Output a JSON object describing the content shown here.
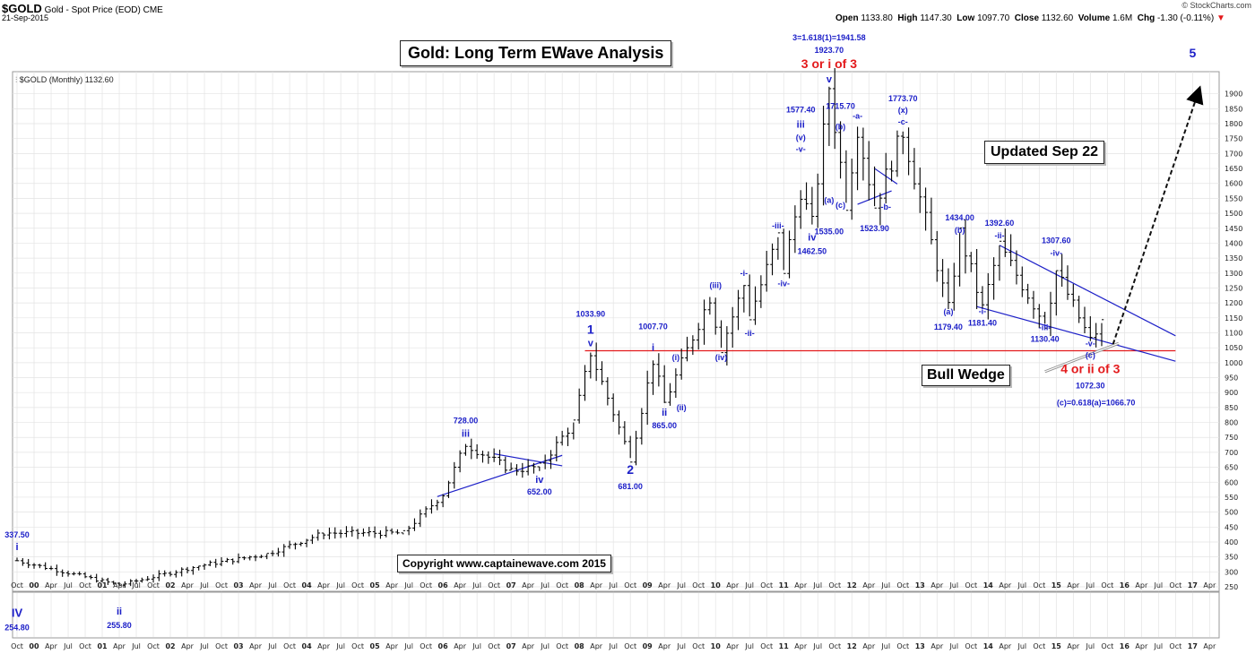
{
  "header": {
    "symbol": "$GOLD",
    "description": "Gold - Spot Price (EOD)",
    "exchange": "CME",
    "date": "21-Sep-2015",
    "open_label": "Open",
    "open": "1133.80",
    "high_label": "High",
    "high": "1147.30",
    "low_label": "Low",
    "low": "1097.70",
    "close_label": "Close",
    "close": "1132.60",
    "volume_label": "Volume",
    "volume": "1.6M",
    "chg_label": "Chg",
    "chg": "-1.30 (-0.11%)",
    "chg_marker": "▼",
    "source": "© StockCharts.com",
    "legend": "$GOLD (Monthly) 1132.60"
  },
  "title_box": "Gold: Long Term EWave Analysis",
  "updated_box": "Updated Sep 22",
  "bull_wedge": "Bull Wedge",
  "copyright": "Copyright   www.captainewave.com 2015",
  "colors": {
    "blue": "#1d20c8",
    "red": "#e31a1c",
    "bars": "#000000",
    "grid": "#e3e3e3"
  },
  "chart_data": {
    "type": "ohlc-bar",
    "title": "Gold: Long Term EWave Analysis",
    "series_name": "$GOLD (Monthly)",
    "ylim": [
      250,
      1950
    ],
    "y_ticks": [
      250,
      300,
      350,
      400,
      450,
      500,
      550,
      600,
      650,
      700,
      750,
      800,
      850,
      900,
      950,
      1000,
      1050,
      1100,
      1150,
      1200,
      1250,
      1300,
      1350,
      1400,
      1450,
      1500,
      1550,
      1600,
      1650,
      1700,
      1750,
      1800,
      1850,
      1900
    ],
    "x_ticks": [
      "Oct",
      "00",
      "Apr",
      "Jul",
      "Oct",
      "01",
      "Apr",
      "Jul",
      "Oct",
      "02",
      "Apr",
      "Jul",
      "Oct",
      "03",
      "Apr",
      "Jul",
      "Oct",
      "04",
      "Apr",
      "Jul",
      "Oct",
      "05",
      "Apr",
      "Jul",
      "Oct",
      "06",
      "Apr",
      "Jul",
      "Oct",
      "07",
      "Apr",
      "Jul",
      "Oct",
      "08",
      "Apr",
      "Jul",
      "Oct",
      "09",
      "Apr",
      "Jul",
      "Oct",
      "10",
      "Apr",
      "Jul",
      "Oct",
      "11",
      "Apr",
      "Jul",
      "Oct",
      "12",
      "Apr",
      "Jul",
      "Oct",
      "13",
      "Apr",
      "Jul",
      "Oct",
      "14",
      "Apr",
      "Jul",
      "Oct",
      "15",
      "Apr",
      "Jul",
      "Oct",
      "16",
      "Apr",
      "Jul",
      "Oct",
      "17",
      "Apr"
    ],
    "start_month": "1999-10",
    "end_month": "2017-04",
    "anchors": [
      [
        "1999-10",
        337.5
      ],
      [
        "2001-04",
        255.8
      ],
      [
        "2002-06",
        320
      ],
      [
        "2003-06",
        360
      ],
      [
        "2004-04",
        430
      ],
      [
        "2005-06",
        430
      ],
      [
        "2006-01",
        560
      ],
      [
        "2006-05",
        728.0
      ],
      [
        "2007-01",
        640
      ],
      [
        "2007-06",
        652.0
      ],
      [
        "2007-12",
        800
      ],
      [
        "2008-03",
        1033.9
      ],
      [
        "2008-10",
        681.0
      ],
      [
        "2009-02",
        1007.7
      ],
      [
        "2009-04",
        865.0
      ],
      [
        "2009-12",
        1220
      ],
      [
        "2010-02",
        1050
      ],
      [
        "2010-06",
        1260
      ],
      [
        "2010-07",
        1155
      ],
      [
        "2010-12",
        1420
      ],
      [
        "2011-01",
        1310
      ],
      [
        "2011-04",
        1577.4
      ],
      [
        "2011-06",
        1462.5
      ],
      [
        "2011-09",
        1923.7
      ],
      [
        "2011-12",
        1535.0
      ],
      [
        "2012-02",
        1790
      ],
      [
        "2012-05",
        1523.9
      ],
      [
        "2012-10",
        1773.7
      ],
      [
        "2013-06",
        1179.4
      ],
      [
        "2013-08",
        1434.0
      ],
      [
        "2013-12",
        1181.4
      ],
      [
        "2014-03",
        1392.6
      ],
      [
        "2014-11",
        1130.4
      ],
      [
        "2015-01",
        1307.6
      ],
      [
        "2015-07",
        1072.3
      ],
      [
        "2015-09",
        1132.6
      ]
    ],
    "labels": [
      {
        "text": "337.50",
        "m": "1999-10",
        "v": 337.5,
        "dy": -26,
        "color": "blue",
        "size": 9
      },
      {
        "text": "i",
        "m": "1999-10",
        "v": 337.5,
        "dy": -12,
        "color": "blue",
        "size": 11
      },
      {
        "text": "IV",
        "m": "1999-10",
        "v": 255,
        "dy": 35,
        "color": "blue",
        "size": 13
      },
      {
        "text": "254.80",
        "m": "1999-10",
        "v": 255,
        "dy": 50,
        "color": "blue",
        "size": 9
      },
      {
        "text": "ii",
        "m": "2001-04",
        "v": 255.8,
        "dy": 33,
        "color": "blue",
        "size": 11
      },
      {
        "text": "255.80",
        "m": "2001-04",
        "v": 255.8,
        "dy": 48,
        "color": "blue",
        "size": 9
      },
      {
        "text": "728.00",
        "m": "2006-05",
        "v": 728,
        "dy": -23,
        "color": "blue",
        "size": 9
      },
      {
        "text": "iii",
        "m": "2006-05",
        "v": 728,
        "dy": -8,
        "color": "blue",
        "size": 11
      },
      {
        "text": "iv",
        "m": "2007-06",
        "v": 652,
        "dy": 18,
        "color": "blue",
        "size": 11
      },
      {
        "text": "652.00",
        "m": "2007-06",
        "v": 652,
        "dy": 31,
        "color": "blue",
        "size": 9
      },
      {
        "text": "1033.90",
        "m": "2008-03",
        "v": 1033.9,
        "dy": -40,
        "color": "blue",
        "size": 9
      },
      {
        "text": "1",
        "m": "2008-03",
        "v": 1033.9,
        "dy": -21,
        "color": "blue",
        "size": 14
      },
      {
        "text": "v",
        "m": "2008-03",
        "v": 1033.9,
        "dy": -7,
        "color": "blue",
        "size": 11
      },
      {
        "text": "2",
        "m": "2008-10",
        "v": 681,
        "dy": 18,
        "color": "blue",
        "size": 14
      },
      {
        "text": "681.00",
        "m": "2008-10",
        "v": 681,
        "dy": 35,
        "color": "blue",
        "size": 9
      },
      {
        "text": "1007.70",
        "m": "2009-02",
        "v": 1007.7,
        "dy": -35,
        "color": "blue",
        "size": 9
      },
      {
        "text": "i",
        "m": "2009-02",
        "v": 1007.7,
        "dy": -11,
        "color": "blue",
        "size": 11
      },
      {
        "text": "ii",
        "m": "2009-04",
        "v": 865,
        "dy": 14,
        "color": "blue",
        "size": 11
      },
      {
        "text": "865.00",
        "m": "2009-04",
        "v": 865,
        "dy": 28,
        "color": "blue",
        "size": 9
      },
      {
        "text": "(i)",
        "m": "2009-06",
        "v": 990,
        "dy": -6,
        "color": "blue",
        "size": 9
      },
      {
        "text": "(ii)",
        "m": "2009-07",
        "v": 930,
        "dy": 30,
        "color": "blue",
        "size": 9
      },
      {
        "text": "(iii)",
        "m": "2010-01",
        "v": 1220,
        "dy": -10,
        "color": "blue",
        "size": 9
      },
      {
        "text": "(iv)",
        "m": "2010-02",
        "v": 1050,
        "dy": 14,
        "color": "blue",
        "size": 9
      },
      {
        "text": "-i-",
        "m": "2010-06",
        "v": 1260,
        "dy": -10,
        "color": "blue",
        "size": 9
      },
      {
        "text": "-ii-",
        "m": "2010-07",
        "v": 1155,
        "dy": 22,
        "color": "blue",
        "size": 9
      },
      {
        "text": "-iii-",
        "m": "2010-12",
        "v": 1420,
        "dy": -10,
        "color": "blue",
        "size": 9
      },
      {
        "text": "-iv-",
        "m": "2011-01",
        "v": 1310,
        "dy": 18,
        "color": "blue",
        "size": 9
      },
      {
        "text": "1577.40",
        "m": "2011-04",
        "v": 1577.4,
        "dy": -87,
        "color": "blue",
        "size": 9
      },
      {
        "text": "iii",
        "m": "2011-04",
        "v": 1577.4,
        "dy": -70,
        "color": "blue",
        "size": 11
      },
      {
        "text": "(v)",
        "m": "2011-04",
        "v": 1577.4,
        "dy": -56,
        "color": "blue",
        "size": 9
      },
      {
        "text": "-v-",
        "m": "2011-04",
        "v": 1577.4,
        "dy": -43,
        "color": "blue",
        "size": 9
      },
      {
        "text": "iv",
        "m": "2011-06",
        "v": 1462.5,
        "dy": 18,
        "color": "blue",
        "size": 11
      },
      {
        "text": "1462.50",
        "m": "2011-06",
        "v": 1462.5,
        "dy": 33,
        "color": "blue",
        "size": 9
      },
      {
        "text": "3=1.618(1)=1941.58",
        "m": "2011-09",
        "v": 1923.7,
        "dy": -52,
        "color": "blue",
        "size": 9
      },
      {
        "text": "1923.70",
        "m": "2011-09",
        "v": 1923.7,
        "dy": -38,
        "color": "blue",
        "size": 9
      },
      {
        "text": "3 or i of 3",
        "m": "2011-09",
        "v": 1923.7,
        "dy": -21,
        "color": "red",
        "size": 14
      },
      {
        "text": "v",
        "m": "2011-09",
        "v": 1923.7,
        "dy": -5,
        "color": "blue",
        "size": 11
      },
      {
        "text": "1715.70",
        "m": "2011-11",
        "v": 1870,
        "dy": 7,
        "color": "blue",
        "size": 9
      },
      {
        "text": "(b)",
        "m": "2011-11",
        "v": 1780,
        "dy": 0,
        "color": "blue",
        "size": 9
      },
      {
        "text": "(a)",
        "m": "2011-09",
        "v": 1535,
        "dy": 0,
        "color": "blue",
        "size": 9
      },
      {
        "text": "1535.00",
        "m": "2011-09",
        "v": 1535,
        "dy": 35,
        "color": "blue",
        "size": 9
      },
      {
        "text": "(c)",
        "m": "2011-11",
        "v": 1523.9,
        "dy": 2,
        "color": "blue",
        "size": 9
      },
      {
        "text": "-a-",
        "m": "2012-02",
        "v": 1790,
        "dy": -9,
        "color": "blue",
        "size": 9
      },
      {
        "text": "1523.90",
        "m": "2012-05",
        "v": 1523.9,
        "dy": 28,
        "color": "blue",
        "size": 9
      },
      {
        "text": "-b-",
        "m": "2012-07",
        "v": 1560,
        "dy": 16,
        "color": "blue",
        "size": 9
      },
      {
        "text": "1773.70",
        "m": "2012-10",
        "v": 1773.7,
        "dy": -34,
        "color": "blue",
        "size": 9
      },
      {
        "text": "(x)",
        "m": "2012-10",
        "v": 1773.7,
        "dy": -21,
        "color": "blue",
        "size": 9
      },
      {
        "text": "-c-",
        "m": "2012-10",
        "v": 1773.7,
        "dy": -8,
        "color": "blue",
        "size": 9
      },
      {
        "text": "1434.00",
        "m": "2013-08",
        "v": 1434,
        "dy": -14,
        "color": "blue",
        "size": 9
      },
      {
        "text": "(b)",
        "m": "2013-08",
        "v": 1434,
        "dy": 0,
        "color": "blue",
        "size": 9
      },
      {
        "text": "(a)",
        "m": "2013-06",
        "v": 1179.4,
        "dy": 6,
        "color": "blue",
        "size": 9
      },
      {
        "text": "1179.40",
        "m": "2013-06",
        "v": 1179.4,
        "dy": 23,
        "color": "blue",
        "size": 9
      },
      {
        "text": "-i-",
        "m": "2013-12",
        "v": 1181.4,
        "dy": 6,
        "color": "blue",
        "size": 9
      },
      {
        "text": "1181.40",
        "m": "2013-12",
        "v": 1181.4,
        "dy": 19,
        "color": "blue",
        "size": 9
      },
      {
        "text": "1392.60",
        "m": "2014-03",
        "v": 1392.6,
        "dy": -22,
        "color": "blue",
        "size": 9
      },
      {
        "text": "-ii-",
        "m": "2014-03",
        "v": 1392.6,
        "dy": -8,
        "color": "blue",
        "size": 9
      },
      {
        "text": "-iii-",
        "m": "2014-11",
        "v": 1130.4,
        "dy": 7,
        "color": "blue",
        "size": 9
      },
      {
        "text": "1130.40",
        "m": "2014-11",
        "v": 1130.4,
        "dy": 20,
        "color": "blue",
        "size": 9
      },
      {
        "text": "1307.60",
        "m": "2015-01",
        "v": 1307.6,
        "dy": -31,
        "color": "blue",
        "size": 9
      },
      {
        "text": "-iv-",
        "m": "2015-01",
        "v": 1307.6,
        "dy": -17,
        "color": "blue",
        "size": 9
      },
      {
        "text": "-v-",
        "m": "2015-07",
        "v": 1072.3,
        "dy": 6,
        "color": "blue",
        "size": 9
      },
      {
        "text": "(c)",
        "m": "2015-07",
        "v": 1072.3,
        "dy": 19,
        "color": "blue",
        "size": 9
      },
      {
        "text": "4 or ii of 3",
        "m": "2015-07",
        "v": 1072.3,
        "dy": 36,
        "color": "red",
        "size": 14
      },
      {
        "text": "1072.30",
        "m": "2015-07",
        "v": 1072.3,
        "dy": 53,
        "color": "blue",
        "size": 9
      },
      {
        "text": "(c)=0.618(a)=1066.70",
        "m": "2015-08",
        "v": 1072.3,
        "dy": 72,
        "color": "blue",
        "size": 9
      },
      {
        "text": "5",
        "m": "2017-01",
        "v": 1950,
        "dy": -24,
        "color": "blue",
        "size": 14
      }
    ],
    "lines": [
      {
        "name": "support-line-1040",
        "color": "red",
        "from": [
          "2008-02",
          1040
        ],
        "to": [
          "2016-10",
          1040
        ]
      },
      {
        "name": "triangle-upper-2007",
        "color": "blue",
        "from": [
          "2006-10",
          695
        ],
        "to": [
          "2007-10",
          655
        ]
      },
      {
        "name": "triangle-lower-2007",
        "color": "blue",
        "from": [
          "2005-12",
          552
        ],
        "to": [
          "2007-10",
          690
        ]
      },
      {
        "name": "triangle-upper-2012",
        "color": "blue",
        "from": [
          "2012-05",
          1650
        ],
        "to": [
          "2012-09",
          1598
        ]
      },
      {
        "name": "triangle-lower-2012",
        "color": "blue",
        "from": [
          "2012-02",
          1530
        ],
        "to": [
          "2012-08",
          1575
        ]
      },
      {
        "name": "wedge-upper",
        "color": "blue",
        "from": [
          "2014-03",
          1393
        ],
        "to": [
          "2016-10",
          1090
        ]
      },
      {
        "name": "wedge-lower",
        "color": "blue",
        "from": [
          "2013-11",
          1188
        ],
        "to": [
          "2016-10",
          1005
        ]
      },
      {
        "name": "wedge-apex-pointer",
        "color": "gray",
        "from": [
          "2014-11",
          970
        ],
        "to": [
          "2015-12",
          1065
        ]
      },
      {
        "name": "projection-arrow-wave-5",
        "color": "black",
        "dashed": true,
        "from": [
          "2015-11",
          1062
        ],
        "to": [
          "2017-02",
          1905
        ]
      }
    ]
  }
}
